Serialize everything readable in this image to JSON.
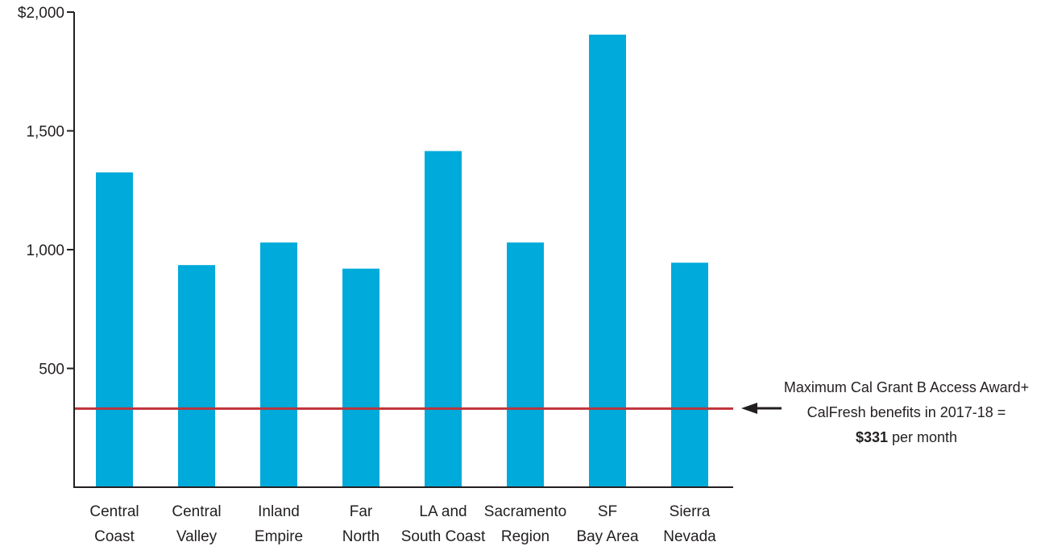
{
  "chart_data": {
    "type": "bar",
    "categories": [
      [
        "Central",
        "Coast"
      ],
      [
        "Central",
        "Valley"
      ],
      [
        "Inland",
        "Empire"
      ],
      [
        "Far",
        "North"
      ],
      [
        "LA and",
        "South Coast"
      ],
      [
        "Sacramento",
        "Region"
      ],
      [
        "SF",
        "Bay Area"
      ],
      [
        "Sierra",
        "Nevada"
      ]
    ],
    "values": [
      1325,
      935,
      1030,
      920,
      1415,
      1030,
      1905,
      945
    ],
    "ylim": [
      0,
      2000
    ],
    "yticks": [
      {
        "value": 2000,
        "label": "$2,000"
      },
      {
        "value": 1500,
        "label": "1,500"
      },
      {
        "value": 1000,
        "label": "1,000"
      },
      {
        "value": 500,
        "label": "500"
      }
    ],
    "reference_line": {
      "value": 331,
      "color": "#c0323a",
      "annotation": {
        "line1": "Maximum Cal Grant B Access Award+",
        "line2": "CalFresh benefits in 2017-18 =",
        "line3_bold": "$331",
        "line3_rest": " per month"
      }
    },
    "bar_color": "#00aada",
    "grid": false,
    "xlabel": "",
    "ylabel": "",
    "title": ""
  }
}
